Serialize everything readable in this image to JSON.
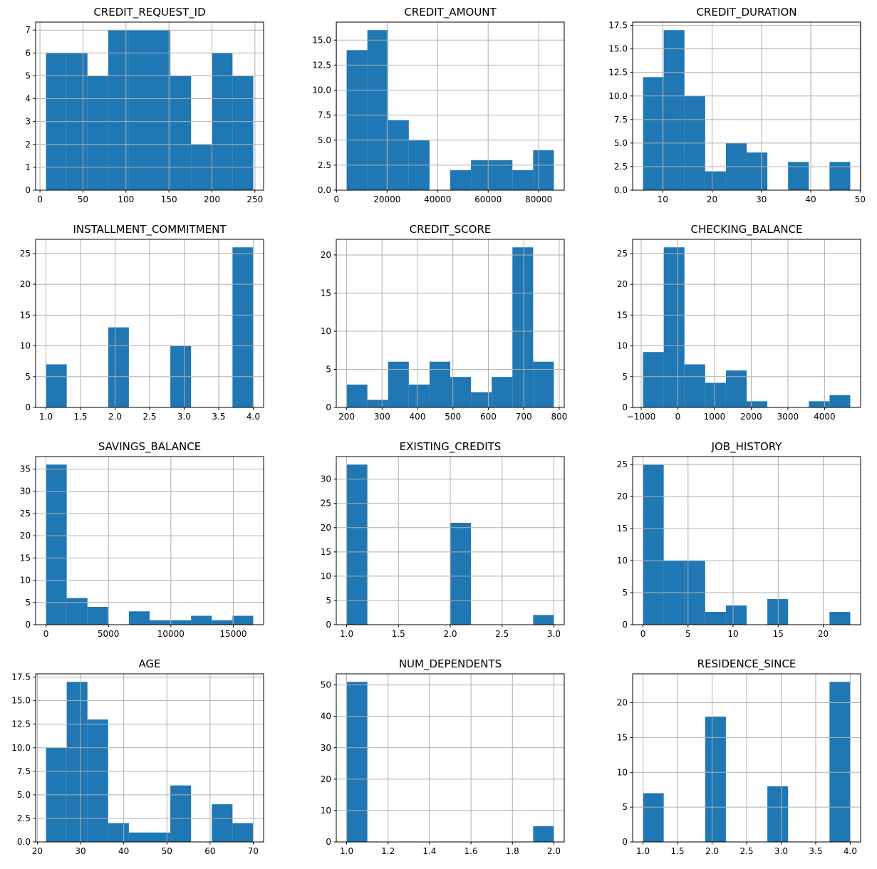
{
  "figure": {
    "background": "#ffffff",
    "bar_color": "#1f77b4",
    "grid_color": "#b0b0b0",
    "axis_color": "#000000",
    "rows": 4,
    "cols": 3,
    "grid_on": true,
    "total_observations": 56
  },
  "chart_data": [
    {
      "type": "bar",
      "title": "CREDIT_REQUEST_ID",
      "bin_start": 7,
      "bin_end": 248,
      "values": [
        6,
        6,
        5,
        7,
        7,
        7,
        5,
        2,
        6,
        5
      ],
      "xlim": [
        -5.05,
        260.05
      ],
      "ylim": [
        0,
        7.35
      ],
      "xticks": [
        0,
        50,
        100,
        150,
        200,
        250
      ],
      "xtick_labels": [
        "0",
        "50",
        "100",
        "150",
        "200",
        "250"
      ],
      "yticks": [
        0,
        1,
        2,
        3,
        4,
        5,
        6,
        7
      ],
      "ytick_labels": [
        "0",
        "1",
        "2",
        "3",
        "4",
        "5",
        "6",
        "7"
      ],
      "grid": true
    },
    {
      "type": "bar",
      "title": "CREDIT_AMOUNT",
      "bin_start": 4000,
      "bin_end": 86000,
      "values": [
        14,
        16,
        7,
        5,
        0,
        2,
        3,
        3,
        2,
        4
      ],
      "xlim": [
        -100,
        90100
      ],
      "ylim": [
        0,
        16.8
      ],
      "xticks": [
        0,
        20000,
        40000,
        60000,
        80000
      ],
      "xtick_labels": [
        "0",
        "20000",
        "40000",
        "60000",
        "80000"
      ],
      "yticks": [
        0,
        2.5,
        5,
        7.5,
        10,
        12.5,
        15
      ],
      "ytick_labels": [
        "0.0",
        "2.5",
        "5.0",
        "7.5",
        "10.0",
        "12.5",
        "15.0"
      ],
      "grid": true
    },
    {
      "type": "bar",
      "title": "CREDIT_DURATION",
      "bin_start": 6,
      "bin_end": 48,
      "values": [
        12,
        17,
        10,
        2,
        5,
        4,
        0,
        3,
        0,
        3
      ],
      "xlim": [
        3.9,
        50.1
      ],
      "ylim": [
        0,
        17.85
      ],
      "xticks": [
        10,
        20,
        30,
        40,
        50
      ],
      "xtick_labels": [
        "10",
        "20",
        "30",
        "40",
        "50"
      ],
      "yticks": [
        0,
        2.5,
        5,
        7.5,
        10,
        12.5,
        15,
        17.5
      ],
      "ytick_labels": [
        "0.0",
        "2.5",
        "5.0",
        "7.5",
        "10.0",
        "12.5",
        "15.0",
        "17.5"
      ],
      "grid": true
    },
    {
      "type": "bar",
      "title": "INSTALLMENT_COMMITMENT",
      "bin_start": 1,
      "bin_end": 4,
      "values": [
        7,
        0,
        0,
        13,
        0,
        0,
        10,
        0,
        0,
        26
      ],
      "xlim": [
        0.85,
        4.15
      ],
      "ylim": [
        0,
        27.3
      ],
      "xticks": [
        1,
        1.5,
        2,
        2.5,
        3,
        3.5,
        4
      ],
      "xtick_labels": [
        "1.0",
        "1.5",
        "2.0",
        "2.5",
        "3.0",
        "3.5",
        "4.0"
      ],
      "yticks": [
        0,
        5,
        10,
        15,
        20,
        25
      ],
      "ytick_labels": [
        "0",
        "5",
        "10",
        "15",
        "20",
        "25"
      ],
      "grid": true
    },
    {
      "type": "bar",
      "title": "CREDIT_SCORE",
      "bin_start": 200,
      "bin_end": 785,
      "values": [
        3,
        1,
        6,
        3,
        6,
        4,
        2,
        4,
        21,
        6
      ],
      "xlim": [
        170.75,
        814.25
      ],
      "ylim": [
        0,
        22.05
      ],
      "xticks": [
        200,
        300,
        400,
        500,
        600,
        700,
        800
      ],
      "xtick_labels": [
        "200",
        "300",
        "400",
        "500",
        "600",
        "700",
        "800"
      ],
      "yticks": [
        0,
        5,
        10,
        15,
        20
      ],
      "ytick_labels": [
        "0",
        "5",
        "10",
        "15",
        "20"
      ],
      "grid": true
    },
    {
      "type": "bar",
      "title": "CHECKING_BALANCE",
      "bin_start": -950,
      "bin_end": 4700,
      "values": [
        9,
        26,
        7,
        4,
        6,
        1,
        0,
        0,
        1,
        2
      ],
      "xlim": [
        -1232.5,
        4982.5
      ],
      "ylim": [
        0,
        27.3
      ],
      "xticks": [
        -1000,
        0,
        1000,
        2000,
        3000,
        4000
      ],
      "xtick_labels": [
        "−1000",
        "0",
        "1000",
        "2000",
        "3000",
        "4000"
      ],
      "yticks": [
        0,
        5,
        10,
        15,
        20,
        25
      ],
      "ytick_labels": [
        "0",
        "5",
        "10",
        "15",
        "20",
        "25"
      ],
      "grid": true
    },
    {
      "type": "bar",
      "title": "SAVINGS_BALANCE",
      "bin_start": 0,
      "bin_end": 16600,
      "values": [
        36,
        6,
        4,
        0,
        3,
        1,
        1,
        2,
        1,
        2
      ],
      "xlim": [
        -830,
        17430
      ],
      "ylim": [
        0,
        37.8
      ],
      "xticks": [
        0,
        5000,
        10000,
        15000
      ],
      "xtick_labels": [
        "0",
        "5000",
        "10000",
        "15000"
      ],
      "yticks": [
        0,
        5,
        10,
        15,
        20,
        25,
        30,
        35
      ],
      "ytick_labels": [
        "0",
        "5",
        "10",
        "15",
        "20",
        "25",
        "30",
        "35"
      ],
      "grid": true
    },
    {
      "type": "bar",
      "title": "EXISTING_CREDITS",
      "bin_start": 1,
      "bin_end": 3,
      "values": [
        33,
        0,
        0,
        0,
        0,
        21,
        0,
        0,
        0,
        2
      ],
      "xlim": [
        0.9,
        3.1
      ],
      "ylim": [
        0,
        34.65
      ],
      "xticks": [
        1,
        1.5,
        2,
        2.5,
        3
      ],
      "xtick_labels": [
        "1.0",
        "1.5",
        "2.0",
        "2.5",
        "3.0"
      ],
      "yticks": [
        0,
        5,
        10,
        15,
        20,
        25,
        30
      ],
      "ytick_labels": [
        "0",
        "5",
        "10",
        "15",
        "20",
        "25",
        "30"
      ],
      "grid": true
    },
    {
      "type": "bar",
      "title": "JOB_HISTORY",
      "bin_start": 0,
      "bin_end": 23,
      "values": [
        25,
        10,
        10,
        2,
        3,
        0,
        4,
        0,
        0,
        2
      ],
      "xlim": [
        -1.15,
        24.15
      ],
      "ylim": [
        0,
        26.25
      ],
      "xticks": [
        0,
        5,
        10,
        15,
        20
      ],
      "xtick_labels": [
        "0",
        "5",
        "10",
        "15",
        "20"
      ],
      "yticks": [
        0,
        5,
        10,
        15,
        20,
        25
      ],
      "ytick_labels": [
        "0",
        "5",
        "10",
        "15",
        "20",
        "25"
      ],
      "grid": true
    },
    {
      "type": "bar",
      "title": "AGE",
      "bin_start": 22,
      "bin_end": 70,
      "values": [
        10,
        17,
        13,
        2,
        1,
        1,
        6,
        0,
        4,
        2
      ],
      "xlim": [
        19.6,
        72.4
      ],
      "ylim": [
        0,
        17.85
      ],
      "xticks": [
        20,
        30,
        40,
        50,
        60,
        70
      ],
      "xtick_labels": [
        "20",
        "30",
        "40",
        "50",
        "60",
        "70"
      ],
      "yticks": [
        0,
        2.5,
        5,
        7.5,
        10,
        12.5,
        15,
        17.5
      ],
      "ytick_labels": [
        "0.0",
        "2.5",
        "5.0",
        "7.5",
        "10.0",
        "12.5",
        "15.0",
        "17.5"
      ],
      "grid": true
    },
    {
      "type": "bar",
      "title": "NUM_DEPENDENTS",
      "bin_start": 1,
      "bin_end": 2,
      "values": [
        51,
        0,
        0,
        0,
        0,
        0,
        0,
        0,
        0,
        5
      ],
      "xlim": [
        0.95,
        2.05
      ],
      "ylim": [
        0,
        53.55
      ],
      "xticks": [
        1,
        1.2,
        1.4,
        1.6,
        1.8,
        2
      ],
      "xtick_labels": [
        "1.0",
        "1.2",
        "1.4",
        "1.6",
        "1.8",
        "2.0"
      ],
      "yticks": [
        0,
        10,
        20,
        30,
        40,
        50
      ],
      "ytick_labels": [
        "0",
        "10",
        "20",
        "30",
        "40",
        "50"
      ],
      "grid": true
    },
    {
      "type": "bar",
      "title": "RESIDENCE_SINCE",
      "bin_start": 1,
      "bin_end": 4,
      "values": [
        7,
        0,
        0,
        18,
        0,
        0,
        8,
        0,
        0,
        23
      ],
      "xlim": [
        0.85,
        4.15
      ],
      "ylim": [
        0,
        24.15
      ],
      "xticks": [
        1,
        1.5,
        2,
        2.5,
        3,
        3.5,
        4
      ],
      "xtick_labels": [
        "1.0",
        "1.5",
        "2.0",
        "2.5",
        "3.0",
        "3.5",
        "4.0"
      ],
      "yticks": [
        0,
        5,
        10,
        15,
        20
      ],
      "ytick_labels": [
        "0",
        "5",
        "10",
        "15",
        "20"
      ],
      "grid": true
    }
  ]
}
